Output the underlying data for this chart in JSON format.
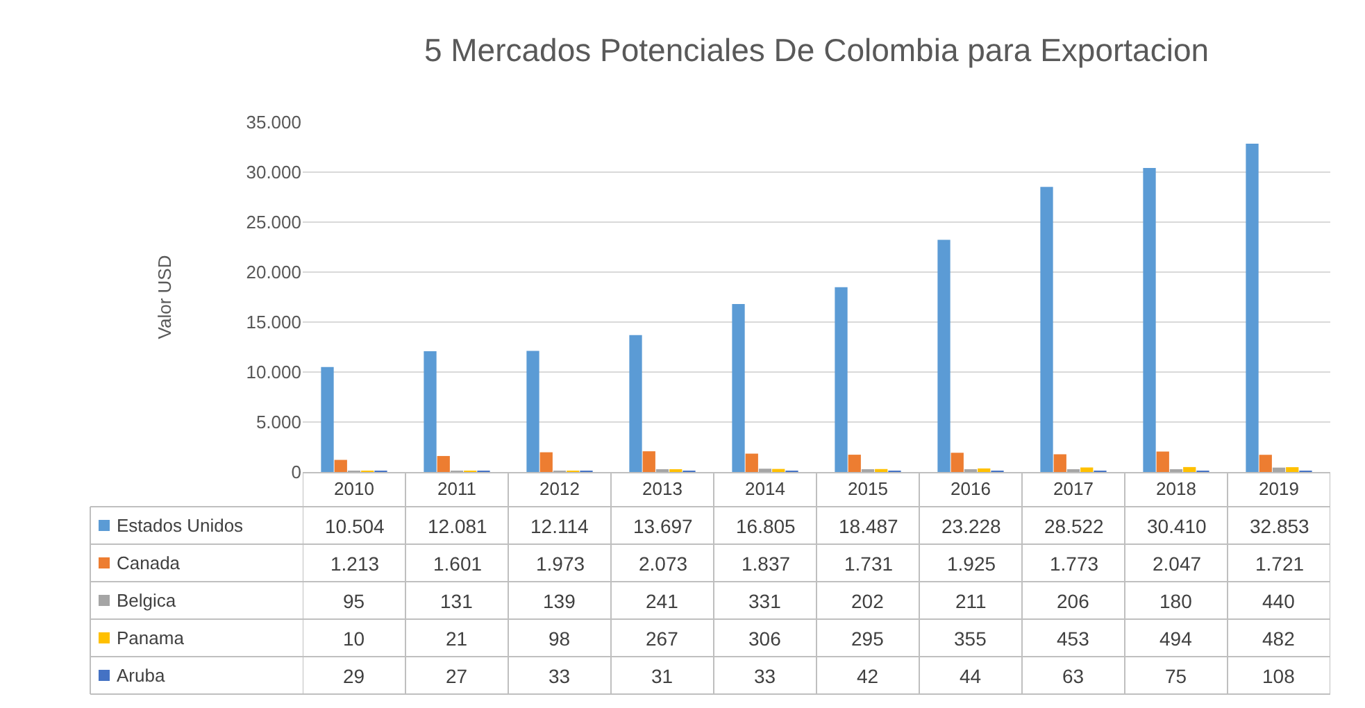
{
  "chart_data": {
    "type": "bar",
    "title": "5 Mercados Potenciales De Colombia para Exportacion",
    "ylabel": "Valor USD",
    "categories": [
      "2010",
      "2011",
      "2012",
      "2013",
      "2014",
      "2015",
      "2016",
      "2017",
      "2018",
      "2019"
    ],
    "series": [
      {
        "name": "Estados Unidos",
        "color": "#5b9bd5",
        "values": [
          10504,
          12081,
          12114,
          13697,
          16805,
          18487,
          23228,
          28522,
          30410,
          32853
        ],
        "value_labels": [
          "10.504",
          "12.081",
          "12.114",
          "13.697",
          "16.805",
          "18.487",
          "23.228",
          "28.522",
          "30.410",
          "32.853"
        ]
      },
      {
        "name": "Canada",
        "color": "#ed7d31",
        "values": [
          1213,
          1601,
          1973,
          2073,
          1837,
          1731,
          1925,
          1773,
          2047,
          1721
        ],
        "value_labels": [
          "1.213",
          "1.601",
          "1.973",
          "2.073",
          "1.837",
          "1.731",
          "1.925",
          "1.773",
          "2.047",
          "1.721"
        ]
      },
      {
        "name": "Belgica",
        "color": "#a5a5a5",
        "values": [
          95,
          131,
          139,
          241,
          331,
          202,
          211,
          206,
          180,
          440
        ],
        "value_labels": [
          "95",
          "131",
          "139",
          "241",
          "331",
          "202",
          "211",
          "206",
          "180",
          "440"
        ]
      },
      {
        "name": "Panama",
        "color": "#ffc000",
        "values": [
          10,
          21,
          98,
          267,
          306,
          295,
          355,
          453,
          494,
          482
        ],
        "value_labels": [
          "10",
          "21",
          "98",
          "267",
          "306",
          "295",
          "355",
          "453",
          "494",
          "482"
        ]
      },
      {
        "name": "Aruba",
        "color": "#4472c4",
        "values": [
          29,
          27,
          33,
          31,
          33,
          42,
          44,
          63,
          75,
          108
        ],
        "value_labels": [
          "29",
          "27",
          "33",
          "31",
          "33",
          "42",
          "44",
          "63",
          "75",
          "108"
        ]
      }
    ],
    "ylim": [
      0,
      35000
    ],
    "yticks": [
      0,
      {
        "value": 5000,
        "label": "5.000"
      },
      {
        "value": 10000,
        "label": "10.000"
      },
      {
        "value": 15000,
        "label": "15.000"
      },
      {
        "value": 20000,
        "label": "20.000"
      },
      {
        "value": 25000,
        "label": "25.000"
      },
      {
        "value": 30000,
        "label": "30.000"
      },
      {
        "value": 35000,
        "label": "35.000"
      }
    ],
    "grid": "y",
    "legend": "bottom"
  }
}
